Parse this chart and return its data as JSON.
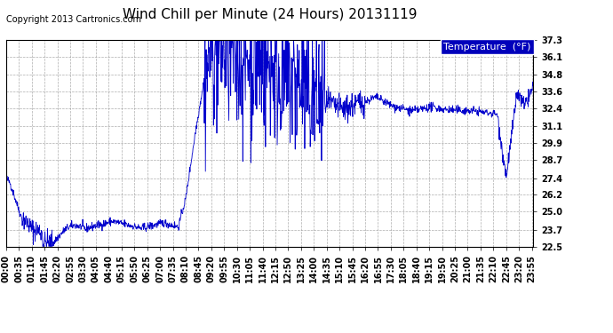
{
  "title": "Wind Chill per Minute (24 Hours) 20131119",
  "copyright": "Copyright 2013 Cartronics.com",
  "legend_label": "Temperature  (°F)",
  "ylabel_values": [
    22.5,
    23.7,
    25.0,
    26.2,
    27.4,
    28.7,
    29.9,
    31.1,
    32.4,
    33.6,
    34.8,
    36.1,
    37.3
  ],
  "ylim": [
    22.5,
    37.3
  ],
  "line_color": "#0000cc",
  "bg_color": "#ffffff",
  "grid_color": "#999999",
  "title_fontsize": 11,
  "copyright_fontsize": 7,
  "tick_fontsize": 7,
  "legend_fontsize": 8,
  "x_tick_interval": 35,
  "total_minutes": 1440
}
